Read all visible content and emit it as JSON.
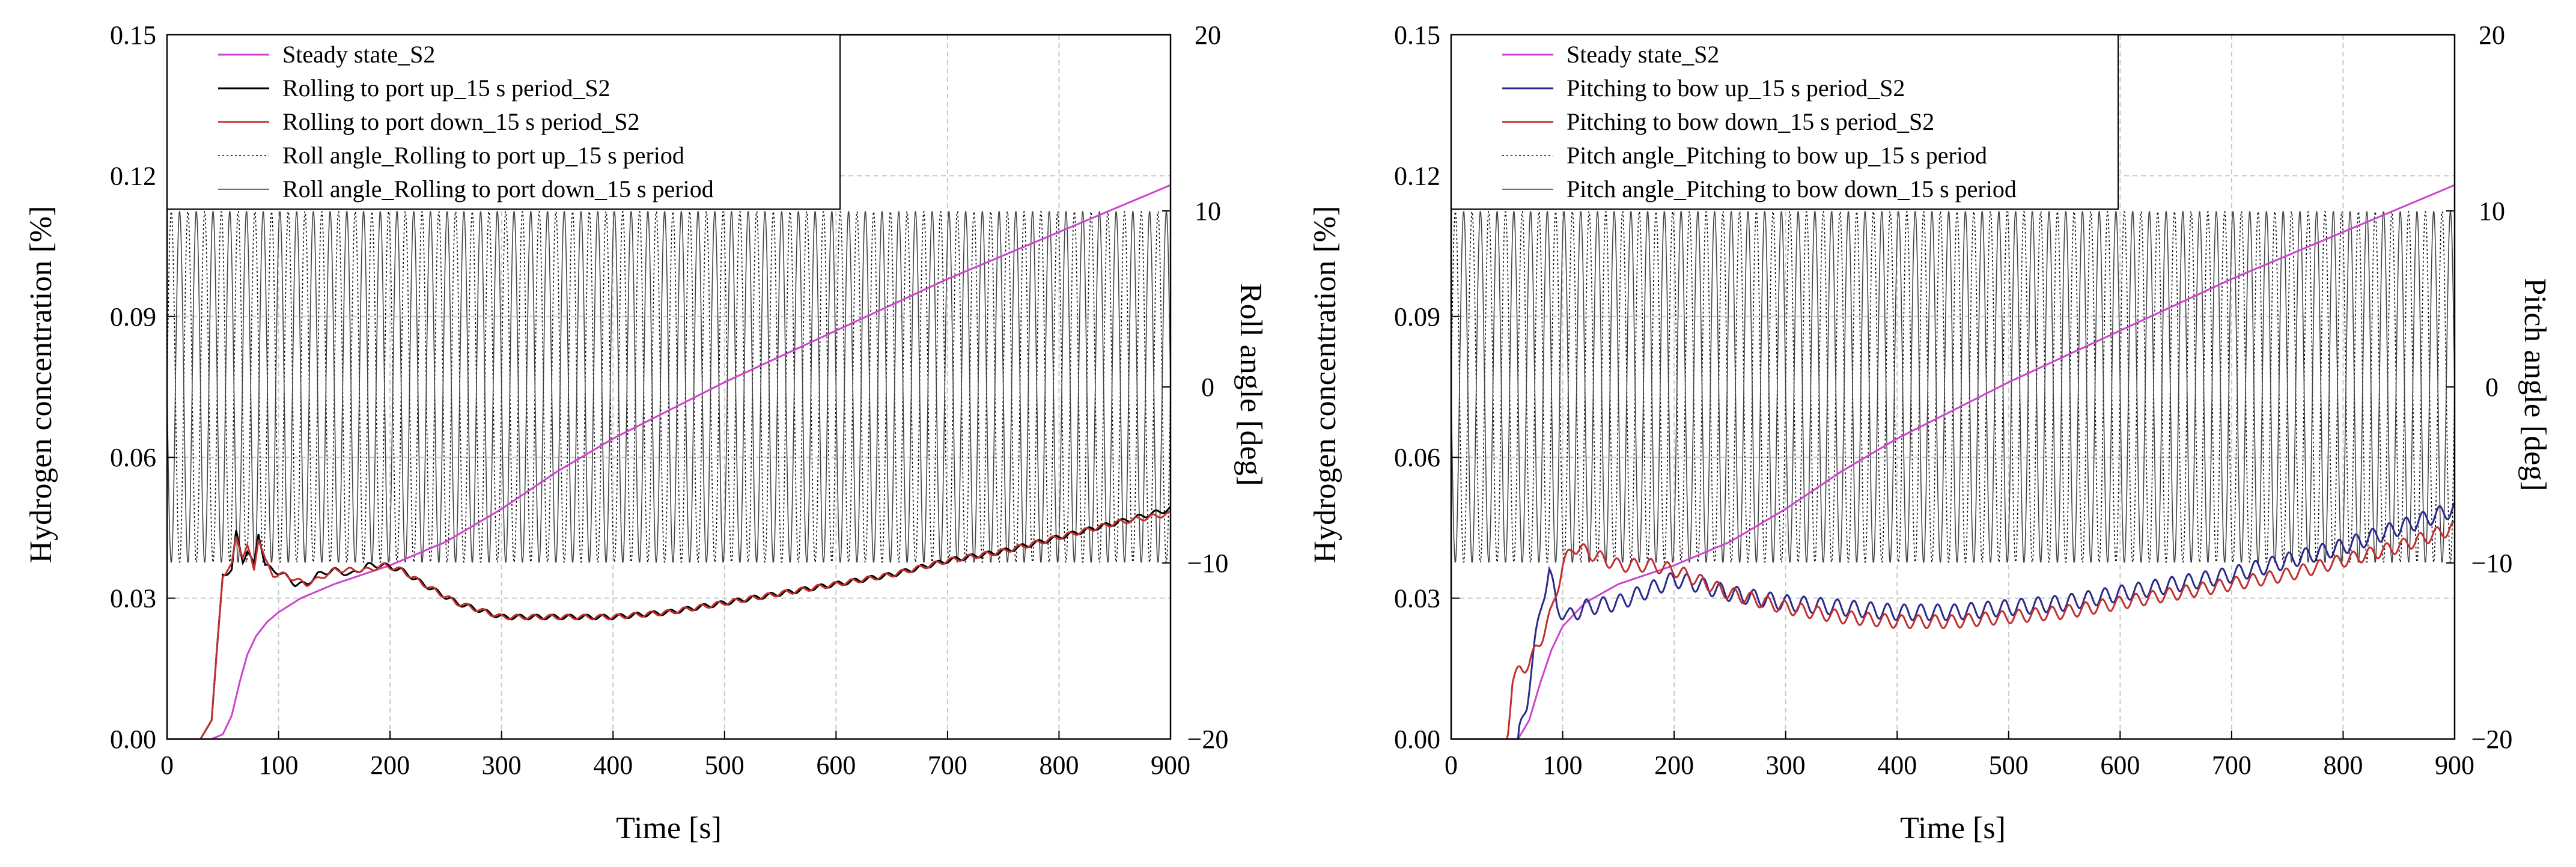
{
  "chart_data": [
    {
      "type": "line",
      "xlabel": "Time [s]",
      "ylabel": "Hydrogen concentration [%]",
      "y2label": "Roll angle [deg]",
      "xlim": [
        0,
        900
      ],
      "ylim": [
        0,
        0.15
      ],
      "y2lim": [
        -20,
        20
      ],
      "xticks": [
        "0",
        "100",
        "200",
        "300",
        "400",
        "500",
        "600",
        "700",
        "800",
        "900"
      ],
      "yticks": [
        "0.00",
        "0.03",
        "0.06",
        "0.09",
        "0.12",
        "0.15"
      ],
      "y2ticks": [
        "-20",
        "-10",
        "0",
        "10",
        "20"
      ],
      "grid": true,
      "legend_position": "top-left",
      "angle_oscillation": {
        "amplitude_deg": 10,
        "period_s": 15,
        "axis": "y2"
      },
      "series": [
        {
          "name": "Steady state_S2",
          "color": "#cc44cc",
          "dash": "solid",
          "axis": "y",
          "x": [
            0,
            40,
            50,
            58,
            65,
            72,
            80,
            90,
            100,
            120,
            150,
            200,
            250,
            300,
            350,
            400,
            500,
            600,
            700,
            800,
            900
          ],
          "y": [
            0,
            0,
            0.001,
            0.005,
            0.012,
            0.018,
            0.022,
            0.025,
            0.027,
            0.03,
            0.033,
            0.037,
            0.042,
            0.049,
            0.057,
            0.064,
            0.076,
            0.087,
            0.098,
            0.108,
            0.118
          ]
        },
        {
          "name": "Rolling to port up_15 s period_S2",
          "color": "#000000",
          "dash": "solid",
          "axis": "y",
          "x": [
            0,
            30,
            40,
            45,
            50,
            58,
            62,
            68,
            72,
            78,
            82,
            88,
            95,
            105,
            115,
            125,
            135,
            150,
            165,
            180,
            195,
            210,
            230,
            260,
            300,
            350,
            400,
            450,
            500,
            550,
            600,
            650,
            700,
            750,
            800,
            850,
            900
          ],
          "y": [
            0,
            0,
            0.004,
            0.02,
            0.035,
            0.036,
            0.044,
            0.038,
            0.04,
            0.037,
            0.044,
            0.037,
            0.036,
            0.035,
            0.033,
            0.033,
            0.035,
            0.036,
            0.035,
            0.037,
            0.037,
            0.036,
            0.033,
            0.029,
            0.026,
            0.026,
            0.026,
            0.027,
            0.029,
            0.031,
            0.033,
            0.035,
            0.038,
            0.04,
            0.043,
            0.046,
            0.049
          ]
        },
        {
          "name": "Rolling to port down_15 s period_S2",
          "color": "#c03030",
          "dash": "solid",
          "axis": "y",
          "x": [
            0,
            30,
            40,
            45,
            50,
            58,
            62,
            68,
            72,
            78,
            82,
            88,
            95,
            105,
            115,
            125,
            135,
            150,
            165,
            180,
            195,
            210,
            230,
            260,
            300,
            350,
            400,
            450,
            500,
            550,
            600,
            650,
            700,
            750,
            800,
            850,
            900
          ],
          "y": [
            0,
            0,
            0.004,
            0.02,
            0.035,
            0.037,
            0.043,
            0.039,
            0.041,
            0.036,
            0.043,
            0.038,
            0.035,
            0.035,
            0.034,
            0.033,
            0.034,
            0.036,
            0.036,
            0.036,
            0.037,
            0.036,
            0.033,
            0.029,
            0.026,
            0.026,
            0.026,
            0.027,
            0.029,
            0.031,
            0.033,
            0.035,
            0.038,
            0.04,
            0.043,
            0.046,
            0.048
          ]
        },
        {
          "name": "Roll angle_Rolling to port up_15 s period",
          "color": "#000000",
          "dash": "dotted",
          "axis": "y2",
          "oscillation": "sine"
        },
        {
          "name": "Roll angle_Rolling to port down_15 s period",
          "color": "#444444",
          "dash": "solid",
          "axis": "y2",
          "oscillation": "sine-inverted"
        }
      ]
    },
    {
      "type": "line",
      "xlabel": "Time [s]",
      "ylabel": "Hydrogen concentration [%]",
      "y2label": "Pitch angle [deg]",
      "xlim": [
        0,
        900
      ],
      "ylim": [
        0,
        0.15
      ],
      "y2lim": [
        -20,
        20
      ],
      "xticks": [
        "0",
        "100",
        "200",
        "300",
        "400",
        "500",
        "600",
        "700",
        "800",
        "900"
      ],
      "yticks": [
        "0.00",
        "0.03",
        "0.06",
        "0.09",
        "0.12",
        "0.15"
      ],
      "y2ticks": [
        "-20",
        "-10",
        "0",
        "10",
        "20"
      ],
      "grid": true,
      "legend_position": "top-left",
      "angle_oscillation": {
        "amplitude_deg": 10,
        "period_s": 15,
        "axis": "y2"
      },
      "series": [
        {
          "name": "Steady state_S2",
          "color": "#cc44cc",
          "dash": "solid",
          "axis": "y",
          "x": [
            0,
            60,
            70,
            80,
            90,
            100,
            120,
            150,
            200,
            250,
            300,
            350,
            400,
            500,
            600,
            700,
            800,
            900
          ],
          "y": [
            0,
            0,
            0.004,
            0.012,
            0.019,
            0.024,
            0.029,
            0.033,
            0.037,
            0.042,
            0.049,
            0.057,
            0.064,
            0.076,
            0.087,
            0.098,
            0.108,
            0.118
          ]
        },
        {
          "name": "Pitching to bow up_15 s period_S2",
          "color": "#2a2a8c",
          "dash": "solid",
          "axis": "y",
          "x": [
            0,
            60,
            68,
            75,
            82,
            88,
            95,
            105,
            120,
            150,
            180,
            200,
            220,
            250,
            300,
            350,
            400,
            450,
            500,
            550,
            600,
            650,
            700,
            750,
            800,
            850,
            900
          ],
          "y": [
            0,
            0,
            0.008,
            0.02,
            0.03,
            0.036,
            0.028,
            0.026,
            0.028,
            0.029,
            0.032,
            0.034,
            0.033,
            0.031,
            0.029,
            0.028,
            0.027,
            0.027,
            0.028,
            0.029,
            0.031,
            0.033,
            0.035,
            0.038,
            0.041,
            0.045,
            0.049
          ]
        },
        {
          "name": "Pitching to bow down_15 s period_S2",
          "color": "#c03030",
          "dash": "solid",
          "axis": "y",
          "x": [
            0,
            50,
            55,
            62,
            70,
            80,
            90,
            100,
            110,
            130,
            150,
            180,
            200,
            220,
            250,
            300,
            350,
            400,
            450,
            500,
            550,
            600,
            650,
            700,
            750,
            800,
            850,
            900
          ],
          "y": [
            0,
            0,
            0.012,
            0.015,
            0.016,
            0.021,
            0.027,
            0.037,
            0.041,
            0.039,
            0.037,
            0.037,
            0.036,
            0.034,
            0.031,
            0.028,
            0.026,
            0.025,
            0.025,
            0.026,
            0.027,
            0.029,
            0.031,
            0.033,
            0.035,
            0.038,
            0.041,
            0.045
          ]
        },
        {
          "name": "Pitch angle_Pitching to bow up_15 s period",
          "color": "#000000",
          "dash": "dotted",
          "axis": "y2",
          "oscillation": "sine"
        },
        {
          "name": "Pitch angle_Pitching to bow down_15 s period",
          "color": "#444444",
          "dash": "solid",
          "axis": "y2",
          "oscillation": "sine-inverted"
        }
      ]
    }
  ]
}
